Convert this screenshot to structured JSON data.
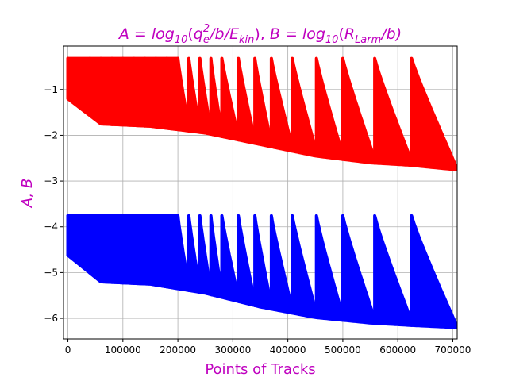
{
  "chart_data": {
    "type": "scatter",
    "title": {
      "a_part": "A",
      "eq1": " = ",
      "log": "log",
      "sub10": "10",
      "open": "(",
      "q": "q",
      "sub_e": "e",
      "sup_2": "2",
      "mid": "/b/",
      "E": "E",
      "sub_kin": "kin",
      "close": "),",
      "b_part": " B",
      "eq2": " = ",
      "log2": "log",
      "sub10b": "10",
      "open2": "(",
      "R": "R",
      "sub_larm": "Larm",
      "close2": "/b)"
    },
    "xlabel": "Points of Tracks",
    "ylabel": "A, B",
    "xlim": [
      -8000,
      708000
    ],
    "ylim": [
      -6.45,
      -0.05
    ],
    "x_ticks": [
      0,
      100000,
      200000,
      300000,
      400000,
      500000,
      600000,
      700000
    ],
    "x_tick_labels": [
      "0",
      "100000",
      "200000",
      "300000",
      "400000",
      "500000",
      "600000",
      "700000"
    ],
    "y_ticks": [
      -1,
      -2,
      -3,
      -4,
      -5,
      -6
    ],
    "y_tick_labels": [
      "−1",
      "−2",
      "−3",
      "−4",
      "−5",
      "−6"
    ],
    "grid": true,
    "title_color": "#bf00bf",
    "label_color": "#bf00bf",
    "series": [
      {
        "name": "A",
        "color": "#ff0000",
        "top": -0.32,
        "start_low": -1.2,
        "floor": [
          [
            0,
            -1.2
          ],
          [
            60000,
            -1.75
          ],
          [
            150000,
            -1.8
          ],
          [
            250000,
            -1.95
          ],
          [
            350000,
            -2.2
          ],
          [
            450000,
            -2.45
          ],
          [
            550000,
            -2.6
          ],
          [
            620000,
            -2.65
          ],
          [
            705000,
            -2.75
          ]
        ],
        "teeth": [
          [
            0,
            -0.32,
            -1.2
          ],
          [
            30000,
            -0.32,
            -1.7
          ],
          [
            280000,
            -0.32,
            -2.2
          ],
          [
            340000,
            -0.32,
            -2.3
          ],
          [
            400000,
            -0.32,
            -2.45
          ],
          [
            450000,
            -0.32,
            -2.55
          ],
          [
            498000,
            -0.32,
            -2.6
          ],
          [
            555000,
            -0.32,
            -2.65
          ],
          [
            625000,
            -0.32,
            -2.75
          ]
        ],
        "tooth_starts": [
          0,
          40000,
          60000,
          80000,
          100000,
          120000,
          140000,
          160000,
          180000,
          200000,
          220000,
          240000,
          260000,
          280000,
          310000,
          340000,
          370000,
          408000,
          452000,
          500000,
          558000,
          625000
        ]
      },
      {
        "name": "B",
        "color": "#0000ff",
        "top": -3.76,
        "start_low": -4.62,
        "floor": [
          [
            0,
            -4.62
          ],
          [
            60000,
            -5.2
          ],
          [
            150000,
            -5.25
          ],
          [
            250000,
            -5.45
          ],
          [
            350000,
            -5.75
          ],
          [
            450000,
            -5.98
          ],
          [
            550000,
            -6.1
          ],
          [
            620000,
            -6.15
          ],
          [
            705000,
            -6.2
          ]
        ],
        "teeth": [],
        "tooth_starts": [
          0,
          40000,
          60000,
          80000,
          100000,
          120000,
          140000,
          160000,
          180000,
          200000,
          220000,
          240000,
          260000,
          280000,
          310000,
          340000,
          370000,
          408000,
          452000,
          500000,
          558000,
          625000
        ]
      }
    ]
  }
}
